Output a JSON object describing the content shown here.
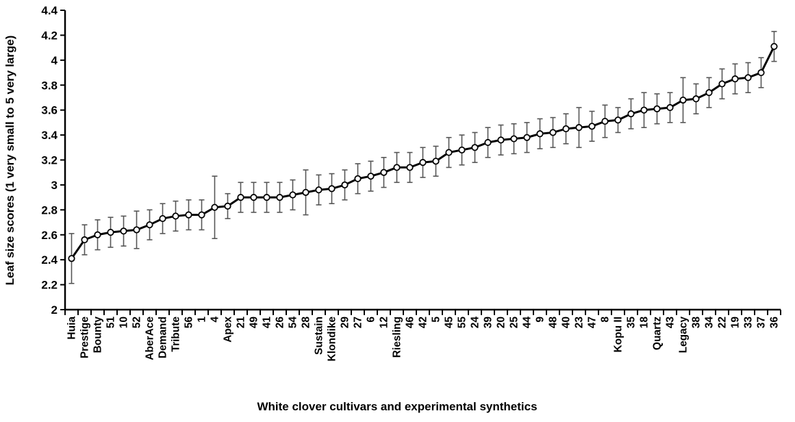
{
  "chart_data": {
    "type": "line",
    "title": "",
    "xlabel": "White clover cultivars and experimental synthetics",
    "ylabel": "Leaf size scores (1 very small to 5 very large)",
    "ylim": [
      2,
      4.4
    ],
    "yticks": [
      "2",
      "2.2",
      "2.4",
      "2.6",
      "2.8",
      "3",
      "3.2",
      "3.4",
      "3.6",
      "3.8",
      "4",
      "4.2",
      "4.4"
    ],
    "grid": false,
    "legend": "none",
    "categories": [
      "Huia",
      "Prestige",
      "Bounty",
      "51",
      "10",
      "52",
      "AberAce",
      "Demand",
      "Tribute",
      "56",
      "1",
      "4",
      "Apex",
      "21",
      "49",
      "41",
      "26",
      "54",
      "28",
      "Sustain",
      "Klondike",
      "29",
      "27",
      "6",
      "12",
      "Riesling",
      "46",
      "42",
      "5",
      "45",
      "55",
      "24",
      "39",
      "20",
      "25",
      "44",
      "9",
      "48",
      "40",
      "23",
      "47",
      "8",
      "Kopu II",
      "35",
      "18",
      "Quartz",
      "43",
      "Legacy",
      "38",
      "34",
      "22",
      "19",
      "33",
      "37",
      "36"
    ],
    "series": [
      {
        "values": [
          2.41,
          2.56,
          2.6,
          2.62,
          2.63,
          2.64,
          2.68,
          2.73,
          2.75,
          2.76,
          2.76,
          2.82,
          2.83,
          2.9,
          2.9,
          2.9,
          2.9,
          2.92,
          2.94,
          2.96,
          2.97,
          3.0,
          3.05,
          3.07,
          3.1,
          3.14,
          3.14,
          3.18,
          3.19,
          3.26,
          3.28,
          3.3,
          3.34,
          3.36,
          3.37,
          3.38,
          3.41,
          3.42,
          3.45,
          3.46,
          3.47,
          3.51,
          3.52,
          3.57,
          3.6,
          3.61,
          3.62,
          3.68,
          3.69,
          3.74,
          3.81,
          3.85,
          3.86,
          3.9,
          4.11
        ],
        "error": [
          0.2,
          0.12,
          0.12,
          0.12,
          0.12,
          0.15,
          0.12,
          0.12,
          0.12,
          0.12,
          0.12,
          0.25,
          0.1,
          0.12,
          0.12,
          0.12,
          0.12,
          0.12,
          0.18,
          0.12,
          0.12,
          0.12,
          0.12,
          0.12,
          0.12,
          0.12,
          0.12,
          0.12,
          0.12,
          0.12,
          0.12,
          0.12,
          0.12,
          0.12,
          0.12,
          0.12,
          0.12,
          0.12,
          0.12,
          0.16,
          0.12,
          0.13,
          0.1,
          0.12,
          0.14,
          0.12,
          0.12,
          0.18,
          0.12,
          0.12,
          0.12,
          0.12,
          0.12,
          0.12,
          0.12
        ],
        "color": "#000000",
        "error_color": "#555555"
      }
    ]
  }
}
